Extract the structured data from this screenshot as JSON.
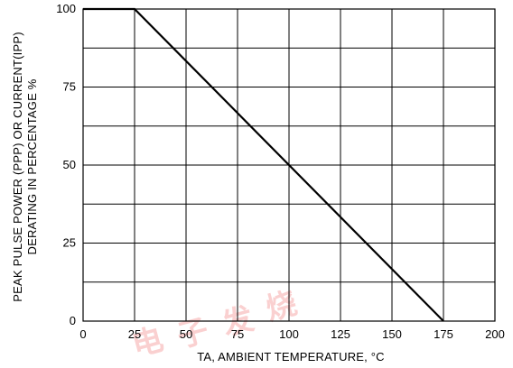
{
  "chart_data": {
    "type": "line",
    "x": [
      0,
      25,
      175
    ],
    "series": [
      {
        "values": [
          100,
          100,
          0
        ]
      }
    ],
    "xlim": [
      0,
      200
    ],
    "ylim": [
      0,
      100
    ],
    "x_ticks": [
      "0",
      "25",
      "50",
      "75",
      "100",
      "125",
      "150",
      "175",
      "200"
    ],
    "y_ticks": [
      "0",
      "25",
      "50",
      "75",
      "100"
    ],
    "xlabel": "TA, AMBIENT TEMPERATURE, °C",
    "ylabel_line1": "PEAK PULSE POWER (PPP) OR CURRENT(IPP)",
    "ylabel_line2": "DERATING IN PERCENTAGE %",
    "grid": true,
    "colors": {
      "line": "#000000",
      "grid": "#000000",
      "background": "#ffffff",
      "watermark": "#e60000"
    }
  },
  "watermark": {
    "text": "电子发烧友"
  }
}
